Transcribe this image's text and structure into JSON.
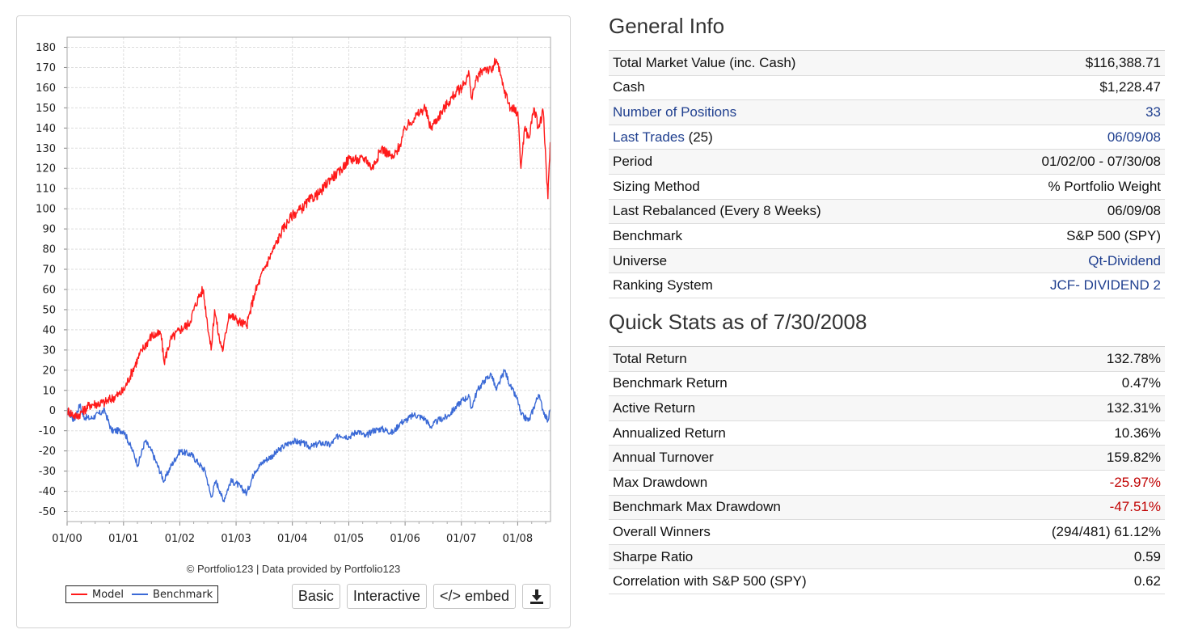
{
  "chart_data": {
    "type": "line",
    "x_ticks": [
      "01/00",
      "01/01",
      "01/02",
      "01/03",
      "01/04",
      "01/05",
      "01/06",
      "01/07",
      "01/08"
    ],
    "x_range": [
      "2000-01-01",
      "2008-08-01"
    ],
    "ylim": [
      -55,
      185
    ],
    "y_ticks": [
      -50,
      -40,
      -30,
      -20,
      -10,
      0,
      10,
      20,
      30,
      40,
      50,
      60,
      70,
      80,
      90,
      100,
      110,
      120,
      130,
      140,
      150,
      160,
      170,
      180
    ],
    "grid": true,
    "legend_position": "bottom-left",
    "series": [
      {
        "name": "Model",
        "color": "#ff1a1a",
        "x": [
          "2000-01-03",
          "2000-03-01",
          "2000-06-01",
          "2000-09-01",
          "2000-12-01",
          "2001-01-02",
          "2001-03-01",
          "2001-05-01",
          "2001-07-01",
          "2001-09-01",
          "2001-09-21",
          "2001-11-01",
          "2002-01-02",
          "2002-03-01",
          "2002-05-01",
          "2002-06-01",
          "2002-07-23",
          "2002-08-15",
          "2002-09-15",
          "2002-10-09",
          "2002-11-15",
          "2003-01-02",
          "2003-02-15",
          "2003-03-11",
          "2003-05-01",
          "2003-07-01",
          "2003-09-01",
          "2003-11-01",
          "2004-01-02",
          "2004-03-01",
          "2004-05-01",
          "2004-07-01",
          "2004-09-01",
          "2004-11-01",
          "2005-01-03",
          "2005-03-01",
          "2005-04-20",
          "2005-06-01",
          "2005-08-01",
          "2005-10-15",
          "2005-12-01",
          "2006-01-03",
          "2006-03-01",
          "2006-05-10",
          "2006-06-15",
          "2006-08-01",
          "2006-10-01",
          "2006-12-01",
          "2007-01-03",
          "2007-02-20",
          "2007-03-05",
          "2007-04-15",
          "2007-06-01",
          "2007-07-15",
          "2007-08-15",
          "2007-10-01",
          "2007-11-15",
          "2008-01-02",
          "2008-01-22",
          "2008-02-15",
          "2008-03-15",
          "2008-04-15",
          "2008-05-15",
          "2008-06-15",
          "2008-07-15",
          "2008-07-30"
        ],
        "y": [
          0,
          -3,
          3,
          4,
          8,
          10,
          20,
          30,
          37,
          38,
          24,
          35,
          40,
          43,
          56,
          60,
          30,
          50,
          35,
          30,
          48,
          45,
          43,
          42,
          58,
          70,
          80,
          90,
          97,
          100,
          105,
          108,
          115,
          118,
          125,
          124,
          125,
          120,
          130,
          125,
          132,
          140,
          145,
          150,
          140,
          145,
          152,
          158,
          160,
          167,
          155,
          165,
          170,
          168,
          174,
          160,
          150,
          148,
          120,
          140,
          135,
          150,
          140,
          148,
          105,
          133
        ]
      },
      {
        "name": "Benchmark",
        "color": "#3b6ad6",
        "x": [
          "2000-01-03",
          "2000-02-15",
          "2000-03-24",
          "2000-04-15",
          "2000-06-01",
          "2000-09-01",
          "2000-10-15",
          "2001-01-02",
          "2001-03-01",
          "2001-04-04",
          "2001-05-21",
          "2001-07-01",
          "2001-09-21",
          "2001-11-01",
          "2002-01-02",
          "2002-03-19",
          "2002-05-01",
          "2002-06-15",
          "2002-07-23",
          "2002-08-22",
          "2002-09-20",
          "2002-10-09",
          "2002-11-27",
          "2003-01-02",
          "2003-03-11",
          "2003-05-01",
          "2003-07-01",
          "2003-09-01",
          "2003-11-01",
          "2004-01-02",
          "2004-03-01",
          "2004-05-01",
          "2004-07-01",
          "2004-09-01",
          "2004-11-01",
          "2005-01-03",
          "2005-03-01",
          "2005-04-20",
          "2005-06-01",
          "2005-08-01",
          "2005-10-15",
          "2005-12-01",
          "2006-01-03",
          "2006-03-01",
          "2006-05-10",
          "2006-06-15",
          "2006-08-01",
          "2006-10-01",
          "2006-12-01",
          "2007-01-03",
          "2007-02-20",
          "2007-03-05",
          "2007-04-15",
          "2007-06-01",
          "2007-07-15",
          "2007-08-15",
          "2007-10-09",
          "2007-11-15",
          "2008-01-02",
          "2008-01-22",
          "2008-03-15",
          "2008-05-15",
          "2008-06-15",
          "2008-07-15",
          "2008-07-30"
        ],
        "y": [
          0,
          -5,
          3,
          -3,
          -4,
          0,
          -10,
          -10,
          -20,
          -27,
          -15,
          -20,
          -35,
          -28,
          -20,
          -22,
          -26,
          -30,
          -43,
          -35,
          -40,
          -45,
          -35,
          -36,
          -41,
          -30,
          -25,
          -22,
          -18,
          -15,
          -16,
          -18,
          -16,
          -17,
          -12,
          -13,
          -10,
          -13,
          -10,
          -9,
          -11,
          -6,
          -5,
          -2,
          -4,
          -8,
          -5,
          -3,
          2,
          5,
          7,
          1,
          10,
          15,
          18,
          10,
          20,
          12,
          5,
          -2,
          -5,
          8,
          0,
          -5,
          0.5
        ]
      }
    ]
  },
  "chart_footer": {
    "credit": "© Portfolio123 | Data provided by Portfolio123",
    "legend_model": "Model",
    "legend_benchmark": "Benchmark",
    "btn_basic": "Basic",
    "btn_interactive": "Interactive",
    "btn_embed": "</> embed",
    "download_icon": "download-icon"
  },
  "general_info": {
    "title": "General Info",
    "rows": [
      {
        "label": "Total Market Value (inc. Cash)",
        "value": "$116,388.71"
      },
      {
        "label": "Cash",
        "value": "$1,228.47"
      },
      {
        "label": "Number of Positions",
        "value": "33"
      },
      {
        "label": "Last Trades",
        "count": "(25)",
        "value": "06/09/08"
      },
      {
        "label": "Period",
        "value": "01/02/00 - 07/30/08"
      },
      {
        "label": "Sizing Method",
        "value": "% Portfolio Weight"
      },
      {
        "label": "Last Rebalanced (Every 8 Weeks)",
        "value": "06/09/08"
      },
      {
        "label": "Benchmark",
        "value": "S&P 500 (SPY)"
      },
      {
        "label": "Universe",
        "value": "Qt-Dividend"
      },
      {
        "label": "Ranking System",
        "value": "JCF- DIVIDEND 2"
      }
    ]
  },
  "quick_stats": {
    "title": "Quick Stats as of 7/30/2008",
    "rows": [
      {
        "label": "Total Return",
        "value": "132.78%"
      },
      {
        "label": "Benchmark Return",
        "value": "0.47%"
      },
      {
        "label": "Active Return",
        "value": "132.31%"
      },
      {
        "label": "Annualized Return",
        "value": "10.36%"
      },
      {
        "label": "Annual Turnover",
        "value": "159.82%"
      },
      {
        "label": "Max Drawdown",
        "value": "-25.97%"
      },
      {
        "label": "Benchmark Max Drawdown",
        "value": "-47.51%"
      },
      {
        "label": "Overall Winners",
        "value": "(294/481) 61.12%"
      },
      {
        "label": "Sharpe Ratio",
        "value": "0.59"
      },
      {
        "label": "Correlation with S&P 500 (SPY)",
        "value": "0.62"
      }
    ]
  },
  "colors": {
    "link": "#1f3f8f",
    "negative": "#c00000"
  }
}
